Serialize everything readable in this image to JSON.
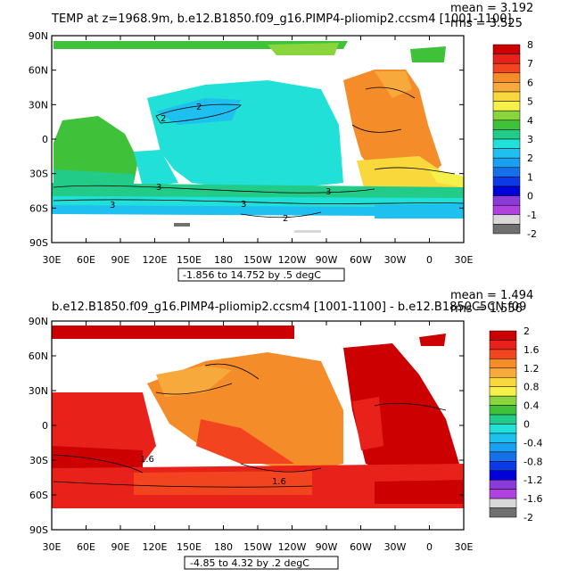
{
  "panels": [
    {
      "title": "TEMP at z=1968.9m, b.e12.B1850.f09_g16.PIMP4-pliomip2.ccsm4 [1001-1100]",
      "mean_label": "mean = 3.192",
      "rms_label": "rms = 3.525",
      "range_label": "-1.856 to 14.752 by .5 degC",
      "lat_labels": [
        "90N",
        "60N",
        "30N",
        "0",
        "30S",
        "60S",
        "90S"
      ],
      "lon_labels": [
        "30E",
        "60E",
        "90E",
        "120E",
        "150E",
        "180",
        "150W",
        "120W",
        "90W",
        "60W",
        "30W",
        "0",
        "30E"
      ],
      "contour_labels": [
        "2",
        "2",
        "3",
        "3",
        "3",
        "3",
        "2"
      ],
      "colorbar": {
        "labels": [
          "8",
          "7",
          "6",
          "5",
          "4",
          "3",
          "2",
          "1",
          "0",
          "-1",
          "-2"
        ],
        "colors": [
          "#cc0000",
          "#e8221b",
          "#f2451f",
          "#f58c2a",
          "#f7a93b",
          "#f8d83a",
          "#f6f04a",
          "#8ad43d",
          "#3fc23a",
          "#22cc88",
          "#20e0d8",
          "#1ec0f0",
          "#1aa0f0",
          "#1670e8",
          "#0b3ae6",
          "#0000d8",
          "#8a3cd8",
          "#b040e0",
          "#d8d8d8",
          "#707070"
        ]
      }
    },
    {
      "title": "b.e12.B1850.f09_g16.PIMP4-pliomip2.ccsm4 [1001-1100] - b.e12.B1850C5CN.f09",
      "mean_label": "mean = 1.494",
      "rms_label": "rms = 1.556",
      "range_label": "-4.85 to 4.32 by .2 degC",
      "lat_labels": [
        "90N",
        "60N",
        "30N",
        "0",
        "30S",
        "60S",
        "90S"
      ],
      "lon_labels": [
        "30E",
        "60E",
        "90E",
        "120E",
        "150E",
        "180",
        "150W",
        "120W",
        "90W",
        "60W",
        "30W",
        "0",
        "30E"
      ],
      "contour_labels": [
        "1.6",
        "1.6"
      ],
      "colorbar": {
        "labels": [
          "2",
          "1.6",
          "1.2",
          "0.8",
          "0.4",
          "0",
          "-0.4",
          "-0.8",
          "-1.2",
          "-1.6",
          "-2"
        ],
        "colors": [
          "#cc0000",
          "#e8221b",
          "#f2451f",
          "#f58c2a",
          "#f7a93b",
          "#f8d83a",
          "#f6f04a",
          "#8ad43d",
          "#3fc23a",
          "#22cc88",
          "#20e0d8",
          "#1ec0f0",
          "#1aa0f0",
          "#1670e8",
          "#0b3ae6",
          "#0000d8",
          "#8a3cd8",
          "#b040e0",
          "#d8d8d8",
          "#707070"
        ]
      }
    }
  ],
  "colors": {
    "land": "#ffffff",
    "frame": "#000000",
    "missing": "#707070"
  }
}
